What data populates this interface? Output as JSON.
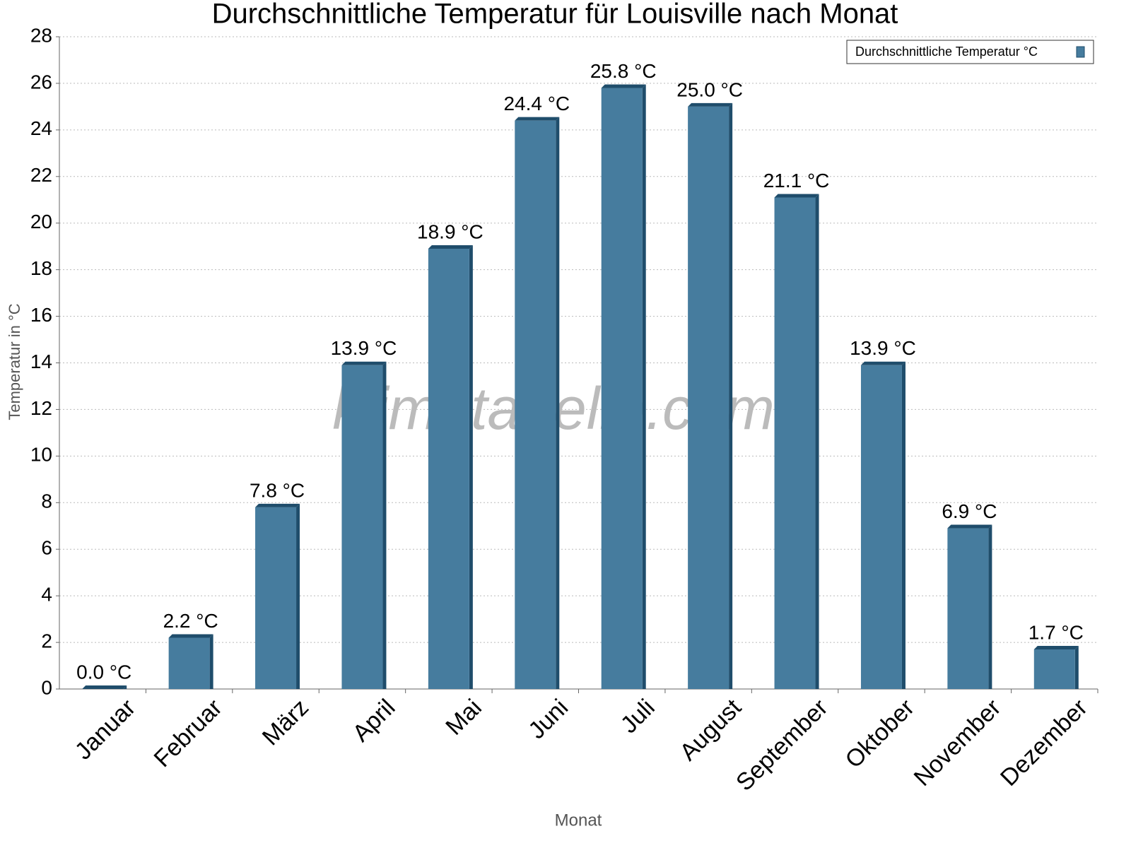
{
  "chart_data": {
    "type": "bar",
    "title": "Durchschnittliche Temperatur für Louisville nach Monat",
    "x_label": "Monat",
    "y_label": "Temperatur in °C",
    "watermark": "klimatabelle.com",
    "categories": [
      "Januar",
      "Februar",
      "März",
      "April",
      "Mai",
      "Juni",
      "Juli",
      "August",
      "September",
      "Oktober",
      "November",
      "Dezember"
    ],
    "series": [
      {
        "name": "Durchschnittliche Temperatur °C",
        "color": "#467c9e",
        "values": [
          0.0,
          2.2,
          7.8,
          13.9,
          18.9,
          24.4,
          25.8,
          25.0,
          21.1,
          13.9,
          6.9,
          1.7
        ],
        "value_labels": [
          "0.0 °C",
          "2.2 °C",
          "7.8 °C",
          "13.9 °C",
          "18.9 °C",
          "24.4 °C",
          "25.8 °C",
          "25.0 °C",
          "21.1 °C",
          "13.9 °C",
          "6.9 °C",
          "1.7 °C"
        ]
      }
    ],
    "ylim": [
      0,
      28
    ],
    "yticks": [
      0,
      2,
      4,
      6,
      8,
      10,
      12,
      14,
      16,
      18,
      20,
      22,
      24,
      26,
      28
    ],
    "grid": true,
    "legend": "top-right"
  }
}
